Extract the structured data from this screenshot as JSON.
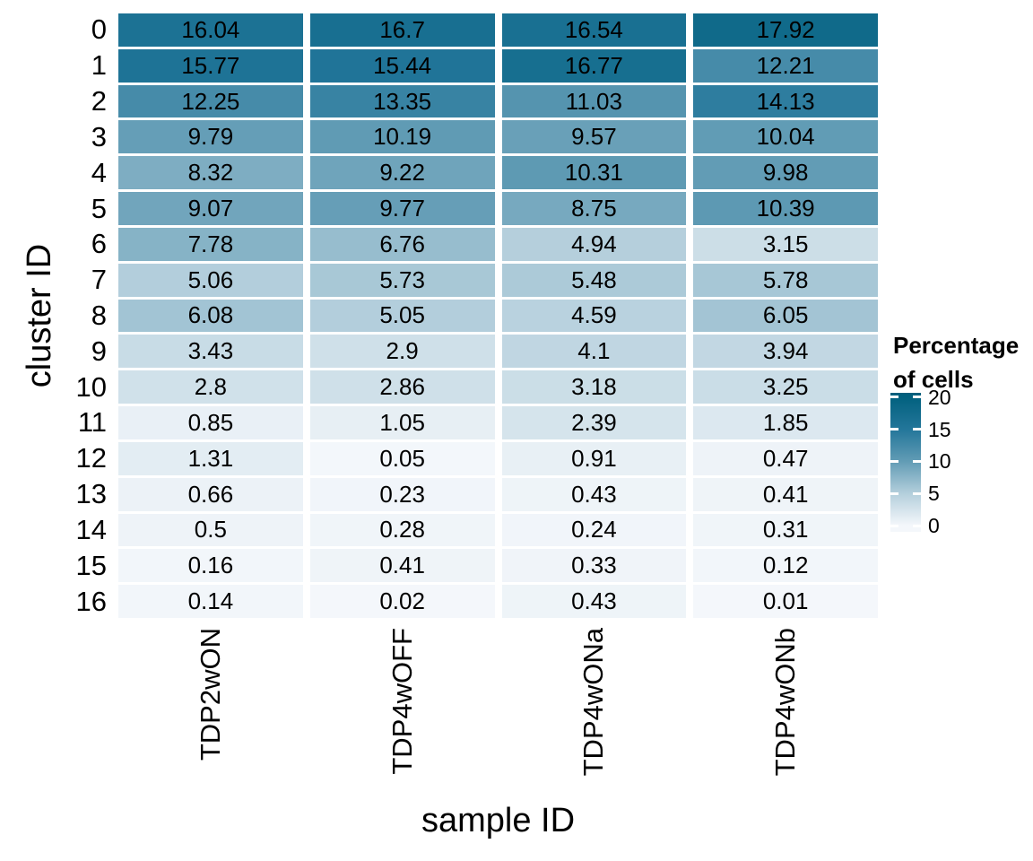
{
  "chart_data": {
    "type": "heatmap",
    "title": "",
    "x_axis": {
      "label": "sample ID",
      "categories": [
        "TDP2wON",
        "TDP4wOFF",
        "TDP4wONa",
        "TDP4wONb"
      ]
    },
    "y_axis": {
      "label": "cluster ID",
      "categories": [
        "0",
        "1",
        "2",
        "3",
        "4",
        "5",
        "6",
        "7",
        "8",
        "9",
        "10",
        "11",
        "12",
        "13",
        "14",
        "15",
        "16"
      ]
    },
    "values": [
      [
        16.04,
        16.7,
        16.54,
        17.92
      ],
      [
        15.77,
        15.44,
        16.77,
        12.21
      ],
      [
        12.25,
        13.35,
        11.03,
        14.13
      ],
      [
        9.79,
        10.19,
        9.57,
        10.04
      ],
      [
        8.32,
        9.22,
        10.31,
        9.98
      ],
      [
        9.07,
        9.77,
        8.75,
        10.39
      ],
      [
        7.78,
        6.76,
        4.94,
        3.15
      ],
      [
        5.06,
        5.73,
        5.48,
        5.78
      ],
      [
        6.08,
        5.05,
        4.59,
        6.05
      ],
      [
        3.43,
        2.9,
        4.1,
        3.94
      ],
      [
        2.8,
        2.86,
        3.18,
        3.25
      ],
      [
        0.85,
        1.05,
        2.39,
        1.85
      ],
      [
        1.31,
        0.05,
        0.91,
        0.47
      ],
      [
        0.66,
        0.23,
        0.43,
        0.41
      ],
      [
        0.5,
        0.28,
        0.24,
        0.31
      ],
      [
        0.16,
        0.41,
        0.33,
        0.12
      ],
      [
        0.14,
        0.02,
        0.43,
        0.01
      ]
    ],
    "legend": {
      "title_lines": [
        "Percentage",
        "of cells"
      ],
      "tick_labels": [
        "20",
        "15",
        "10",
        "5",
        "0"
      ],
      "tick_values": [
        20,
        15,
        10,
        5,
        0
      ]
    },
    "colorscale": {
      "domain": [
        0,
        20
      ],
      "stop_values": [
        0,
        5,
        10,
        15,
        20
      ],
      "stop_colors": [
        "#f4f7fb",
        "#b4cfdc",
        "#629cb5",
        "#23769a",
        "#02617f"
      ]
    },
    "background": "#ffffff",
    "value_text_color": "#000000",
    "layout_hints": {
      "grid": false,
      "legend_position": "right"
    }
  }
}
